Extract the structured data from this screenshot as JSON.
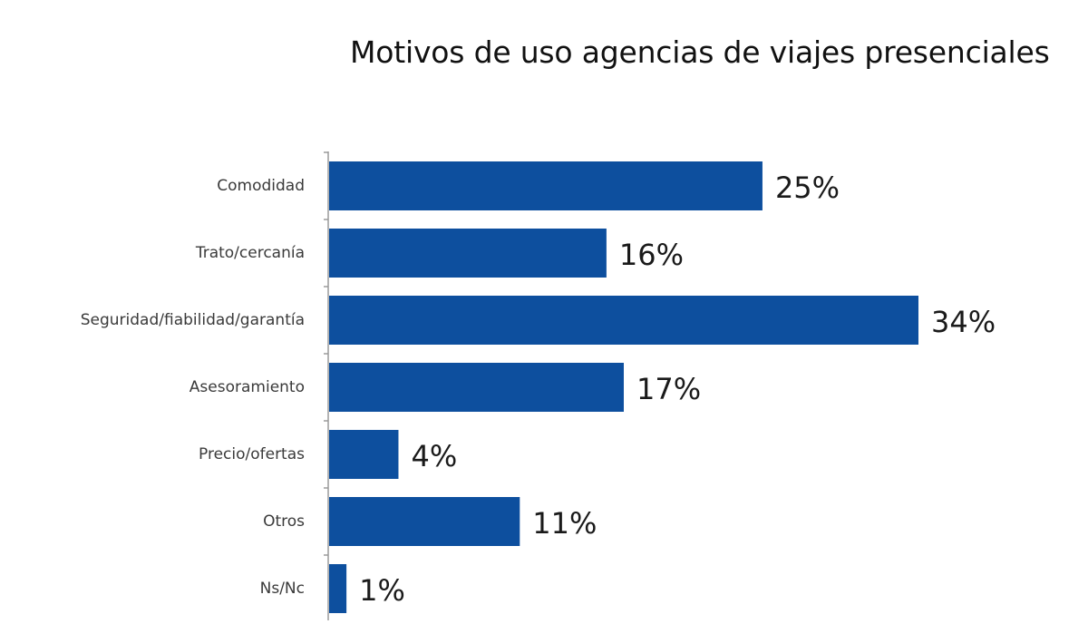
{
  "chart_data": {
    "type": "bar",
    "orientation": "horizontal",
    "title": "Motivos de uso agencias de viajes presenciales",
    "categories": [
      "Comodidad",
      "Trato/cercanía",
      "Seguridad/fiabilidad/garantía",
      "Asesoramiento",
      "Precio/ofertas",
      "Otros",
      "Ns/Nc"
    ],
    "values": [
      25,
      16,
      34,
      17,
      4,
      11,
      1
    ],
    "value_labels": [
      "25%",
      "16%",
      "34%",
      "17%",
      "4%",
      "11%",
      "1%"
    ],
    "unit": "%",
    "xlim": [
      0,
      34
    ],
    "grid": false,
    "legend": "none",
    "bar_color": "#0d4f9e",
    "axis_color": "#9a9a9a"
  }
}
